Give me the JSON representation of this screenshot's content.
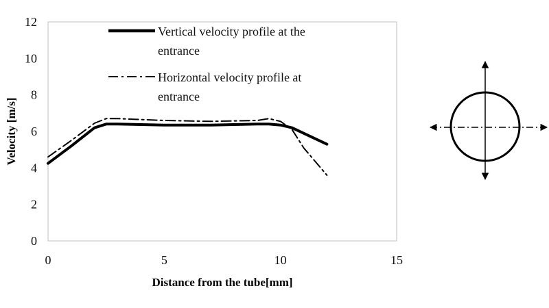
{
  "chart_data": {
    "type": "line",
    "xlabel": "Distance from the tube[mm]",
    "ylabel": "Velocity [m/s]",
    "xlim": [
      0,
      15
    ],
    "ylim": [
      0,
      12
    ],
    "xticks": [
      0,
      5,
      10,
      15
    ],
    "yticks": [
      0,
      2,
      4,
      6,
      8,
      10,
      12
    ],
    "grid": false,
    "legend": "top-right",
    "series": [
      {
        "name_lines": [
          "Vertical velocity profile at the",
          "entrance"
        ],
        "style": "solid",
        "x": [
          0,
          1,
          2,
          2.5,
          3,
          5,
          7,
          9,
          9.5,
          10,
          10.5,
          11,
          12
        ],
        "y": [
          4.25,
          5.2,
          6.2,
          6.4,
          6.4,
          6.35,
          6.35,
          6.4,
          6.4,
          6.35,
          6.2,
          5.9,
          5.3
        ]
      },
      {
        "name_lines": [
          "Horizontal velocity profile at",
          "entrance"
        ],
        "style": "dashdot",
        "x": [
          0,
          1,
          2,
          2.5,
          3,
          5,
          7,
          9,
          9.5,
          10,
          10.5,
          11,
          12
        ],
        "y": [
          4.6,
          5.5,
          6.45,
          6.7,
          6.7,
          6.6,
          6.55,
          6.6,
          6.7,
          6.55,
          6.1,
          5.1,
          3.6
        ]
      }
    ]
  },
  "inset": {
    "icon": "circle-with-crosshair-arrows-icon"
  }
}
